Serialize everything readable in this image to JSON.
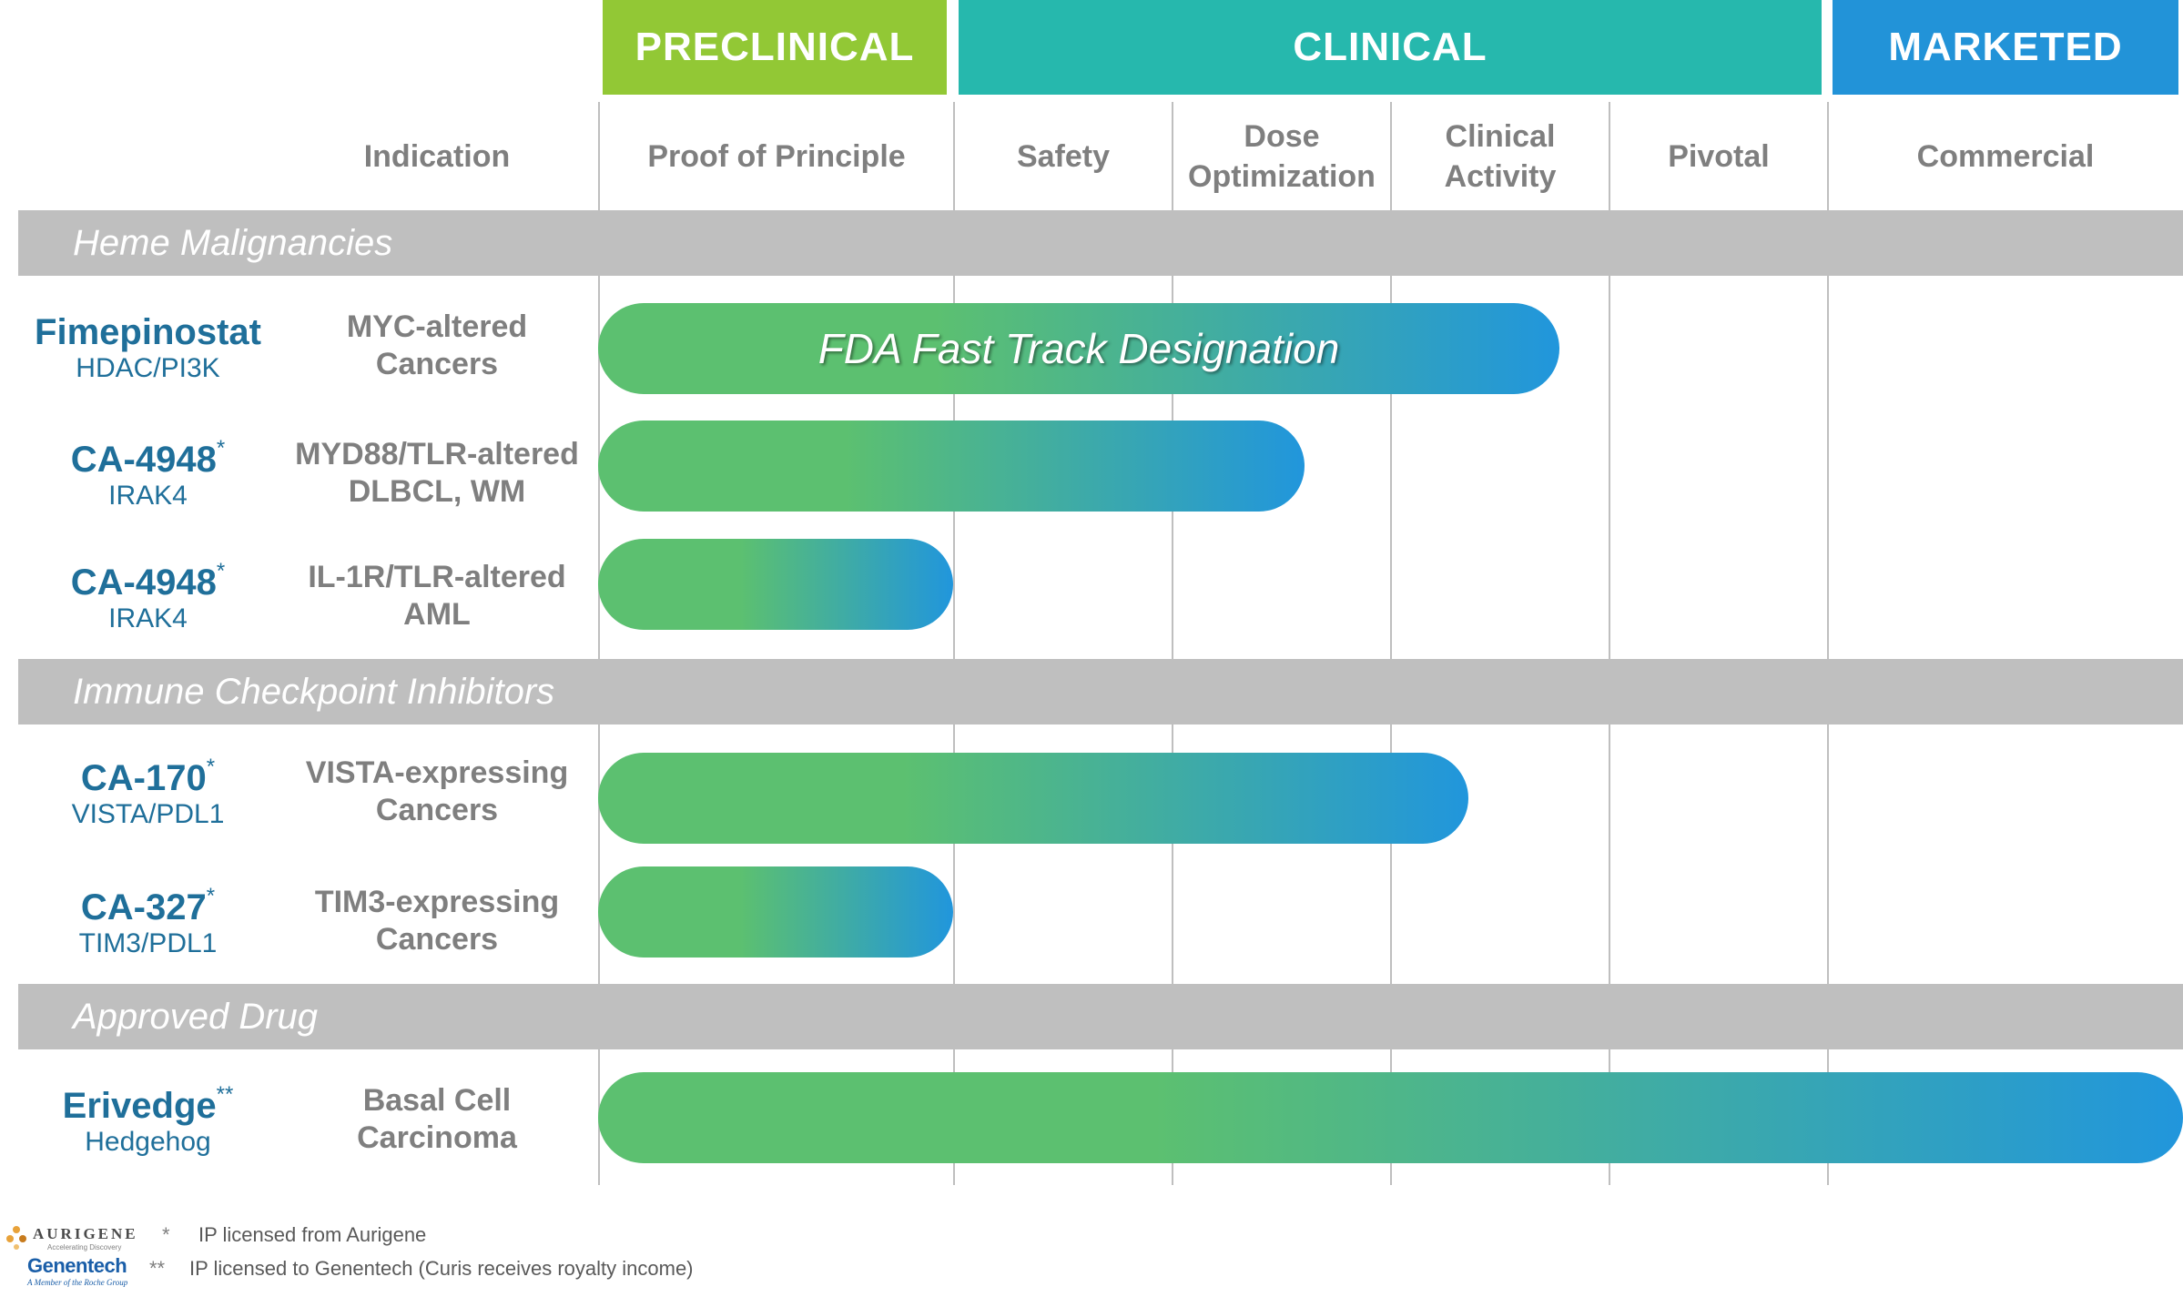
{
  "stages": [
    {
      "label": "PRECLINICAL",
      "color": "#92c835"
    },
    {
      "label": "CLINICAL",
      "color": "#26b8ad"
    },
    {
      "label": "MARKETED",
      "color": "#2293d8"
    }
  ],
  "columns": {
    "indication": "Indication",
    "proof_of_principle": "Proof of Principle",
    "safety": "Safety",
    "dose_optimization": "Dose\nOptimization",
    "clinical_activity": "Clinical\nActivity",
    "pivotal": "Pivotal",
    "commercial": "Commercial"
  },
  "sections": {
    "heme": "Heme Malignancies",
    "checkpoint": "Immune Checkpoint Inhibitors",
    "approved": "Approved Drug"
  },
  "drugs": [
    {
      "name": "Fimepinostat",
      "sup": "",
      "target": "HDAC/PI3K",
      "indication": "MYC-altered\nCancers",
      "bar_label": "FDA Fast Track Designation"
    },
    {
      "name": "CA-4948",
      "sup": "*",
      "target": "IRAK4",
      "indication": "MYD88/TLR-altered\nDLBCL, WM",
      "bar_label": ""
    },
    {
      "name": "CA-4948",
      "sup": "*",
      "target": "IRAK4",
      "indication": "IL-1R/TLR-altered\nAML",
      "bar_label": ""
    },
    {
      "name": "CA-170",
      "sup": "*",
      "target": "VISTA/PDL1",
      "indication": "VISTA-expressing\nCancers",
      "bar_label": ""
    },
    {
      "name": "CA-327",
      "sup": "*",
      "target": "TIM3/PDL1",
      "indication": "TIM3-expressing\nCancers",
      "bar_label": ""
    },
    {
      "name": "Erivedge",
      "sup": "**",
      "target": "Hedgehog",
      "indication": "Basal Cell\nCarcinoma",
      "bar_label": ""
    }
  ],
  "bar_colors": {
    "start": "#5cc070",
    "end": "#2196dc"
  },
  "footnotes": [
    {
      "mark": "*",
      "text": "IP licensed from Aurigene"
    },
    {
      "mark": "**",
      "text": "IP licensed to Genentech (Curis receives royalty income)"
    }
  ],
  "logos": {
    "aurigene": "AURIGENE",
    "aurigene_tagline": "Accelerating Discovery",
    "genentech": "Genentech",
    "genentech_tagline": "A Member of the Roche Group"
  }
}
